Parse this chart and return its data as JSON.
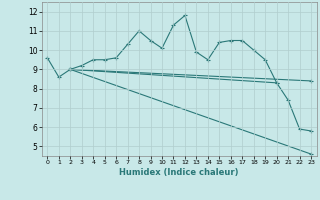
{
  "xlabel": "Humidex (Indice chaleur)",
  "background_color": "#c8e8e8",
  "line_color": "#2a7878",
  "xlim": [
    -0.5,
    23.5
  ],
  "ylim": [
    4.5,
    12.5
  ],
  "xticks": [
    0,
    1,
    2,
    3,
    4,
    5,
    6,
    7,
    8,
    9,
    10,
    11,
    12,
    13,
    14,
    15,
    16,
    17,
    18,
    19,
    20,
    21,
    22,
    23
  ],
  "yticks": [
    5,
    6,
    7,
    8,
    9,
    10,
    11,
    12
  ],
  "grid_color": "#b0cece",
  "series": [
    {
      "x": [
        0,
        1,
        2,
        3,
        4,
        5,
        6,
        7,
        8,
        9,
        10,
        11,
        12,
        13,
        14,
        15,
        16,
        17,
        18,
        19,
        20,
        21,
        22,
        23
      ],
      "y": [
        9.6,
        8.6,
        9.0,
        9.2,
        9.5,
        9.5,
        9.6,
        10.3,
        11.0,
        10.5,
        10.1,
        11.3,
        11.8,
        9.9,
        9.5,
        10.4,
        10.5,
        10.5,
        10.0,
        9.5,
        8.3,
        7.4,
        5.9,
        5.8
      ]
    },
    {
      "x": [
        2,
        23
      ],
      "y": [
        9.0,
        4.6
      ]
    },
    {
      "x": [
        2,
        20
      ],
      "y": [
        9.0,
        8.3
      ]
    },
    {
      "x": [
        2,
        23
      ],
      "y": [
        9.0,
        8.4
      ]
    }
  ]
}
